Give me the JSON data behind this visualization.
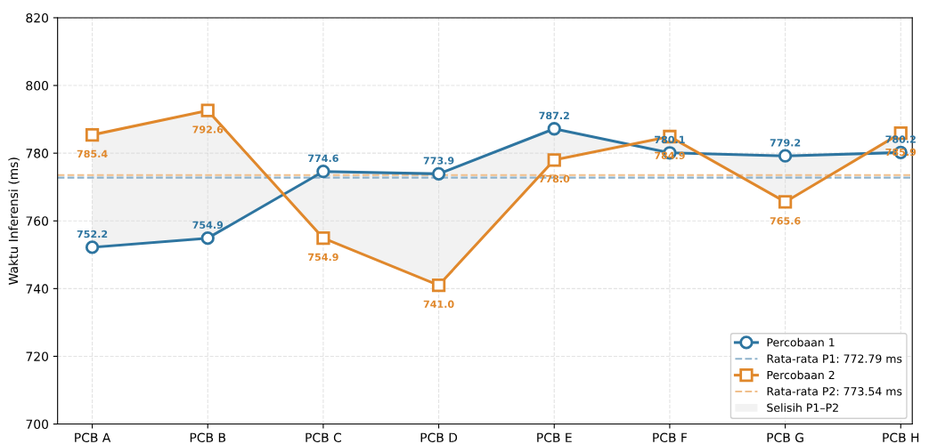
{
  "chart_data": {
    "type": "line",
    "ylabel": "Waktu Inferensi (ms)",
    "categories": [
      "PCB A",
      "PCB B",
      "PCB C",
      "PCB D",
      "PCB E",
      "PCB F",
      "PCB G",
      "PCB H"
    ],
    "series": [
      {
        "name": "Percobaan 1",
        "color": "#2e75a0",
        "marker": "circle",
        "values": [
          752.2,
          754.9,
          774.6,
          773.9,
          787.2,
          780.1,
          779.2,
          780.2
        ],
        "value_labels": [
          "752.2",
          "754.9",
          "774.6",
          "773.9",
          "787.2",
          "780.1",
          "779.2",
          "780.2"
        ]
      },
      {
        "name": "Percobaan 2",
        "color": "#e0882c",
        "marker": "square",
        "values": [
          785.4,
          792.6,
          754.9,
          741.0,
          778.0,
          784.9,
          765.6,
          785.9
        ],
        "value_labels": [
          "785.4",
          "792.6",
          "754.9",
          "741.0",
          "778.0",
          "784.9",
          "765.6",
          "785.9"
        ],
        "lower": [
          752.2,
          754.9,
          774.6,
          773.9,
          787.2,
          780.1,
          779.2,
          780.2
        ],
        "upper": [
          785.4,
          792.6,
          754.9,
          741.0,
          778.0,
          784.9,
          765.6,
          785.9
        ]
      }
    ],
    "annotations": [
      "Selisih P1–P2"
    ],
    "ref_lines": [
      {
        "axis": "y",
        "value": 772.79,
        "label": "Rata-rata P1: 772.79 ms",
        "color": "#8fb3cc",
        "line_style": "dashed"
      },
      {
        "axis": "y",
        "value": 773.54,
        "label": "Rata-rata P2: 773.54 ms",
        "color": "#f0bf8c",
        "line_style": "dashed"
      }
    ],
    "ylim": [
      700,
      820
    ],
    "yticks": [
      700,
      720,
      740,
      760,
      780,
      800,
      820
    ],
    "grid": true,
    "legend": "bottom right"
  }
}
